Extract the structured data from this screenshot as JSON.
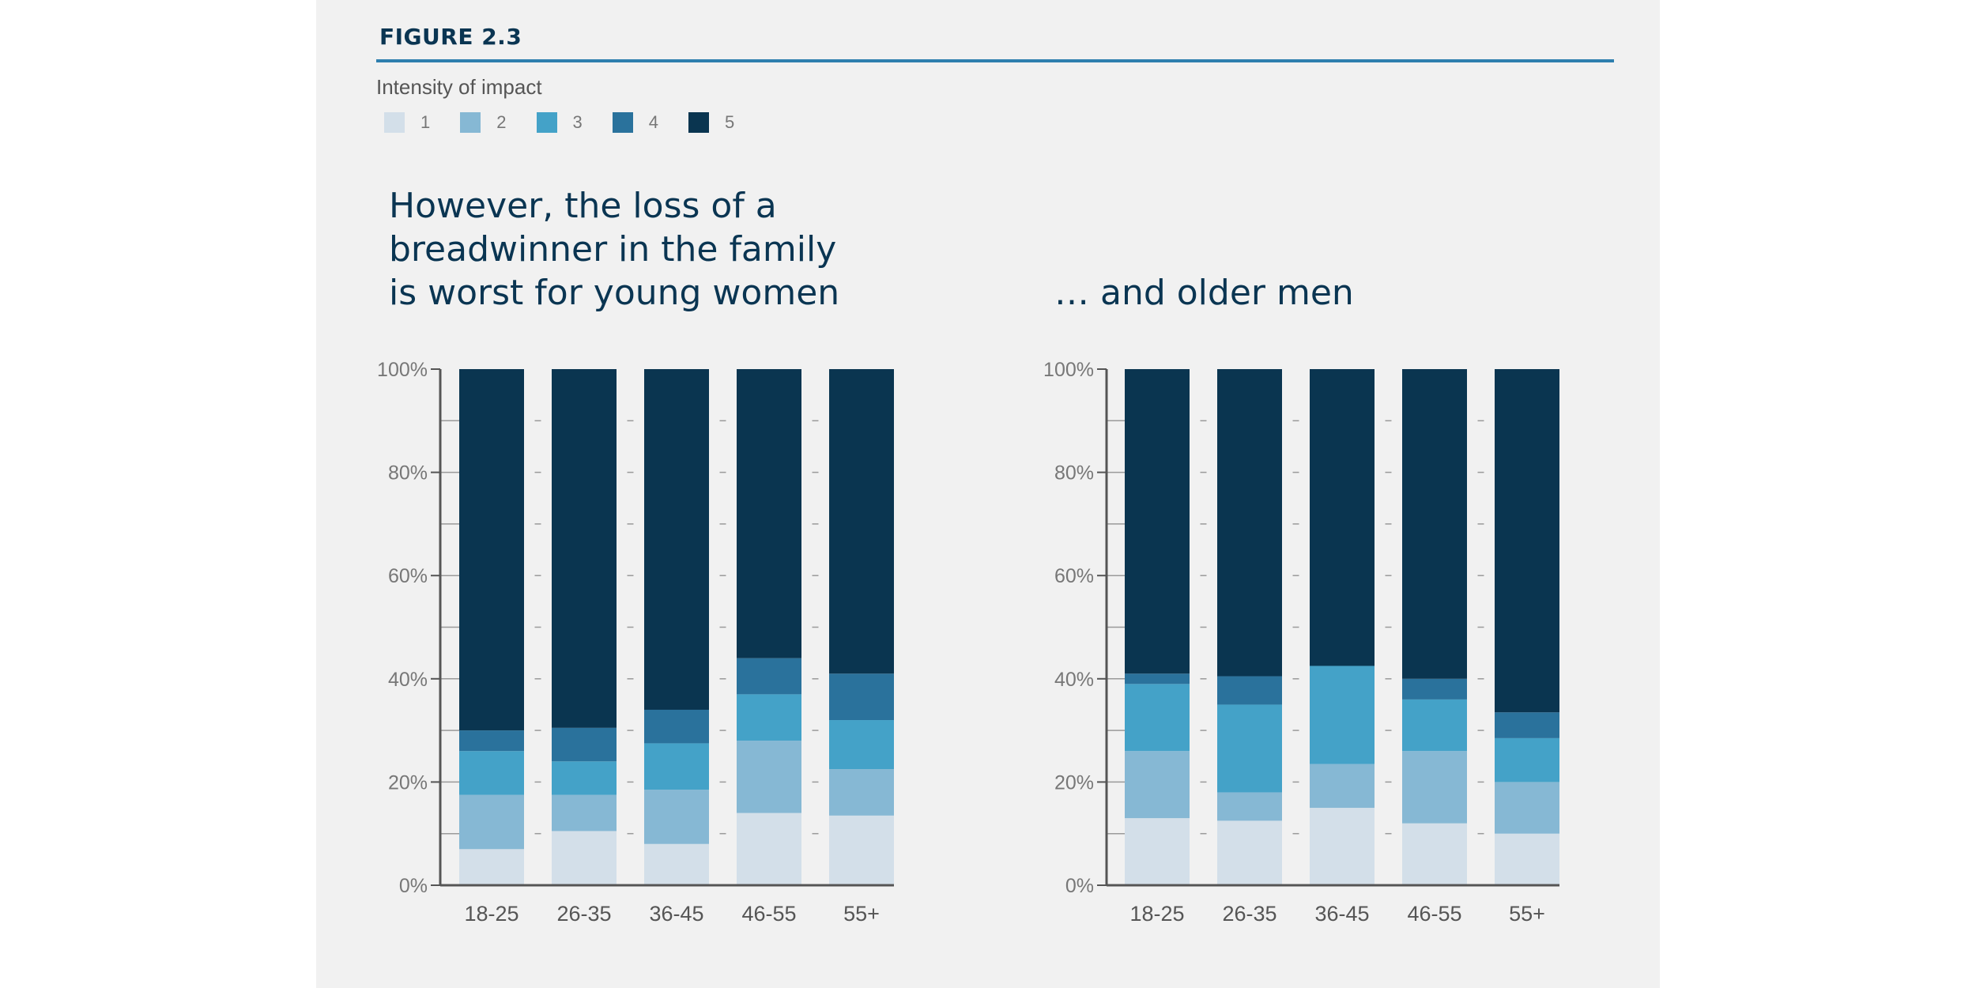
{
  "figure_label": "FIGURE 2.3",
  "legend": {
    "title": "Intensity of impact",
    "items": [
      {
        "label": "1",
        "color": "#d3dfe9"
      },
      {
        "label": "2",
        "color": "#86b8d4"
      },
      {
        "label": "3",
        "color": "#44a2c8"
      },
      {
        "label": "4",
        "color": "#2a729c"
      },
      {
        "label": "5",
        "color": "#0a3550"
      }
    ]
  },
  "chart_data": [
    {
      "type": "bar",
      "stacked": true,
      "title": "However, the loss of a\nbreadwinner in the family\nis worst for young women",
      "categories": [
        "18-25",
        "26-35",
        "36-45",
        "46-55",
        "55+"
      ],
      "yticks": [
        "0%",
        "20%",
        "40%",
        "60%",
        "80%",
        "100%"
      ],
      "ylim": [
        0,
        100
      ],
      "series": [
        {
          "name": "1",
          "values": [
            7,
            10.5,
            8,
            14,
            13.5
          ]
        },
        {
          "name": "2",
          "values": [
            10.5,
            7,
            10.5,
            14,
            9
          ]
        },
        {
          "name": "3",
          "values": [
            8.5,
            6.5,
            9,
            9,
            9.5
          ]
        },
        {
          "name": "4",
          "values": [
            4,
            6.5,
            6.5,
            7,
            9
          ]
        },
        {
          "name": "5",
          "values": [
            70,
            69.5,
            66,
            56,
            59
          ]
        }
      ]
    },
    {
      "type": "bar",
      "stacked": true,
      "title": "… and older men",
      "categories": [
        "18-25",
        "26-35",
        "36-45",
        "46-55",
        "55+"
      ],
      "yticks": [
        "0%",
        "20%",
        "40%",
        "60%",
        "80%",
        "100%"
      ],
      "ylim": [
        0,
        100
      ],
      "series": [
        {
          "name": "1",
          "values": [
            13,
            12.5,
            15,
            12,
            10
          ]
        },
        {
          "name": "2",
          "values": [
            13,
            5.5,
            8.5,
            14,
            10
          ]
        },
        {
          "name": "3",
          "values": [
            13,
            17,
            19,
            10,
            8.5
          ]
        },
        {
          "name": "4",
          "values": [
            2,
            5.5,
            0,
            4,
            5
          ]
        },
        {
          "name": "5",
          "values": [
            59,
            59.5,
            57.5,
            60,
            66.5
          ]
        }
      ]
    }
  ]
}
